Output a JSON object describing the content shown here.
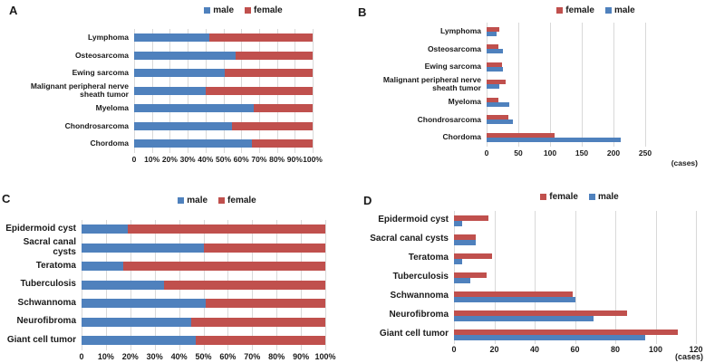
{
  "figure": {
    "background": "#ffffff",
    "text_color": "#1a1a1a",
    "grid_color": "#d9d9d9",
    "series_colors": {
      "male": "#4F81BD",
      "female": "#C0504D"
    }
  },
  "chart_data": [
    {
      "id": "A",
      "panel_label": "A",
      "type": "bar",
      "subtype": "horizontal-100pct-stacked",
      "legend": [
        "male",
        "female"
      ],
      "categories": [
        "Lymphoma",
        "Osteosarcoma",
        "Ewing sarcoma",
        "Malignant peripheral nerve sheath tumor",
        "Myeloma",
        "Chondrosarcoma",
        "Chordoma"
      ],
      "series": [
        {
          "name": "male",
          "values": [
            42,
            57,
            51,
            40,
            67,
            55,
            66
          ]
        },
        {
          "name": "female",
          "values": [
            58,
            43,
            49,
            60,
            33,
            45,
            34
          ]
        }
      ],
      "xlim": [
        0,
        100
      ],
      "x_ticks": [
        {
          "v": 0,
          "label": "0"
        },
        {
          "v": 10,
          "label": "10%"
        },
        {
          "v": 20,
          "label": "20%"
        },
        {
          "v": 30,
          "label": "30%"
        },
        {
          "v": 40,
          "label": "40%"
        },
        {
          "v": 50,
          "label": "50%"
        },
        {
          "v": 60,
          "label": "60%"
        },
        {
          "v": 70,
          "label": "70%"
        },
        {
          "v": 80,
          "label": "80%"
        },
        {
          "v": 90,
          "label": "90%"
        },
        {
          "v": 100,
          "label": "100%"
        }
      ],
      "x_axis_note": ""
    },
    {
      "id": "B",
      "panel_label": "B",
      "type": "bar",
      "subtype": "horizontal-clustered",
      "legend": [
        "female",
        "male"
      ],
      "categories": [
        "Lymphoma",
        "Osteosarcoma",
        "Ewing sarcoma",
        "Malignant peripheral nerve sheath tumor",
        "Myeloma",
        "Chondrosarcoma",
        "Chordoma"
      ],
      "series": [
        {
          "name": "female",
          "values": [
            20,
            18,
            24,
            30,
            18,
            34,
            107
          ]
        },
        {
          "name": "male",
          "values": [
            15,
            25,
            26,
            20,
            36,
            41,
            211
          ]
        }
      ],
      "xlim": [
        0,
        250
      ],
      "x_ticks": [
        {
          "v": 0,
          "label": "0"
        },
        {
          "v": 50,
          "label": "50"
        },
        {
          "v": 100,
          "label": "100"
        },
        {
          "v": 150,
          "label": "150"
        },
        {
          "v": 200,
          "label": "200"
        },
        {
          "v": 250,
          "label": "250"
        }
      ],
      "x_axis_note": "(cases)"
    },
    {
      "id": "C",
      "panel_label": "C",
      "type": "bar",
      "subtype": "horizontal-100pct-stacked",
      "legend": [
        "male",
        "female"
      ],
      "categories": [
        "Epidermoid cyst",
        "Sacral canal cysts",
        "Teratoma",
        "Tuberculosis",
        "Schwannoma",
        "Neurofibroma",
        "Giant cell tumor"
      ],
      "series": [
        {
          "name": "male",
          "values": [
            19,
            50,
            17,
            34,
            51,
            45,
            47
          ]
        },
        {
          "name": "female",
          "values": [
            81,
            50,
            83,
            66,
            49,
            55,
            53
          ]
        }
      ],
      "xlim": [
        0,
        100
      ],
      "x_ticks": [
        {
          "v": 0,
          "label": "0"
        },
        {
          "v": 10,
          "label": "10%"
        },
        {
          "v": 20,
          "label": "20%"
        },
        {
          "v": 30,
          "label": "30%"
        },
        {
          "v": 40,
          "label": "40%"
        },
        {
          "v": 50,
          "label": "50%"
        },
        {
          "v": 60,
          "label": "60%"
        },
        {
          "v": 70,
          "label": "70%"
        },
        {
          "v": 80,
          "label": "80%"
        },
        {
          "v": 90,
          "label": "90%"
        },
        {
          "v": 100,
          "label": "100%"
        }
      ],
      "x_axis_note": ""
    },
    {
      "id": "D",
      "panel_label": "D",
      "type": "bar",
      "subtype": "horizontal-clustered",
      "legend": [
        "female",
        "male"
      ],
      "categories": [
        "Epidermoid cyst",
        "Sacral canal cysts",
        "Teratoma",
        "Tuberculosis",
        "Schwannoma",
        "Neurofibroma",
        "Giant cell tumor"
      ],
      "series": [
        {
          "name": "female",
          "values": [
            17,
            11,
            19,
            16,
            59,
            86,
            111
          ]
        },
        {
          "name": "male",
          "values": [
            4,
            11,
            4,
            8,
            60,
            69,
            95
          ]
        }
      ],
      "xlim": [
        0,
        120
      ],
      "x_ticks": [
        {
          "v": 0,
          "label": "0"
        },
        {
          "v": 20,
          "label": "20"
        },
        {
          "v": 40,
          "label": "40"
        },
        {
          "v": 60,
          "label": "60"
        },
        {
          "v": 80,
          "label": "80"
        },
        {
          "v": 100,
          "label": "100"
        },
        {
          "v": 120,
          "label": "120"
        }
      ],
      "x_axis_note": "(cases)"
    }
  ]
}
